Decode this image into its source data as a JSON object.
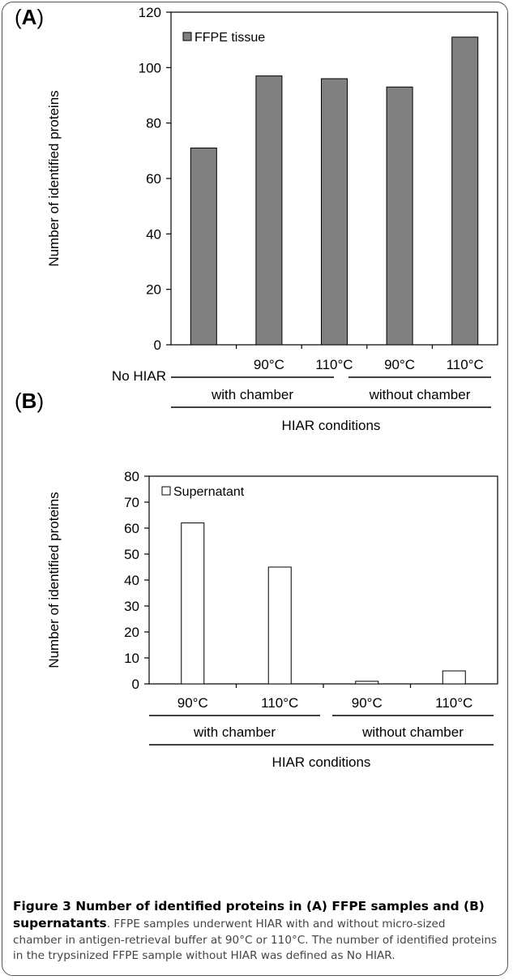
{
  "chart_data": [
    {
      "type": "bar",
      "panel_label": "A",
      "categories": [
        "No HIAR",
        "90°C",
        "110°C",
        "90°C",
        "110°C"
      ],
      "groups": [
        {
          "label": "with chamber",
          "members": [
            1,
            2
          ]
        },
        {
          "label": "without chamber",
          "members": [
            3,
            4
          ]
        }
      ],
      "group_title": "HIAR conditions",
      "series": [
        {
          "name": "FFPE tissue",
          "values": [
            71,
            97,
            96,
            93,
            111
          ],
          "color": "#808080"
        }
      ],
      "ylabel": "Number of identified proteins",
      "ylim": [
        0,
        120
      ],
      "yticks": [
        0,
        20,
        40,
        60,
        80,
        100,
        120
      ],
      "legend": "top-left",
      "grid": false
    },
    {
      "type": "bar",
      "panel_label": "B",
      "categories": [
        "90°C",
        "110°C",
        "90°C",
        "110°C"
      ],
      "groups": [
        {
          "label": "with chamber",
          "members": [
            0,
            1
          ]
        },
        {
          "label": "without chamber",
          "members": [
            2,
            3
          ]
        }
      ],
      "group_title": "HIAR conditions",
      "series": [
        {
          "name": "Supernatant",
          "values": [
            62,
            45,
            1,
            5
          ],
          "color": "#ffffff"
        }
      ],
      "ylabel": "Number of identified proteins",
      "ylim": [
        0,
        80
      ],
      "yticks": [
        0,
        10,
        20,
        30,
        40,
        50,
        60,
        70,
        80
      ],
      "legend": "top-left",
      "grid": false
    }
  ],
  "caption": {
    "title": "Figure 3 Number of identified proteins in (A) FFPE samples and (B) supernatants",
    "body": ". FFPE samples underwent HIAR with and without micro-sized chamber in antigen-retrieval buffer at 90°C or 110°C. The number of identified proteins in the trypsinized FFPE sample without HIAR was defined as No HIAR."
  }
}
